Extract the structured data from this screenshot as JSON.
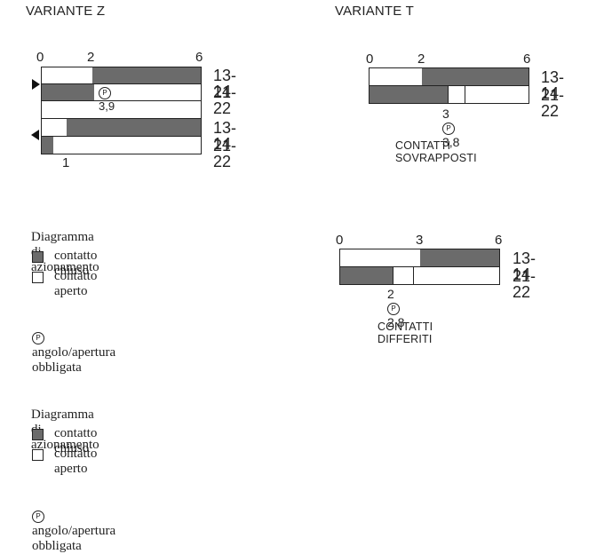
{
  "variant_z": {
    "title": "VARIANTE Z",
    "ticks": [
      "0",
      "2",
      "6"
    ],
    "codes_top": [
      "13-14",
      "21-22"
    ],
    "codes_bottom": [
      "13-14",
      "21-22"
    ],
    "p_value": "3,9",
    "bottom_tick": "1",
    "p_symbol": "P"
  },
  "variant_t": {
    "title": "VARIANTE T",
    "diagram_a": {
      "ticks": [
        "0",
        "2",
        "6"
      ],
      "codes": [
        "13-14",
        "21-22"
      ],
      "left_value": "3",
      "p_value": "3,8",
      "caption": "CONTATTI SOVRAPPOSTI"
    },
    "diagram_b": {
      "ticks": [
        "0",
        "3",
        "6"
      ],
      "codes": [
        "13-14",
        "21-22"
      ],
      "left_value": "2",
      "p_value": "2,8",
      "caption": "CONTATTI DIFFERITI"
    }
  },
  "legend_1": {
    "heading": "Diagramma di azionamento",
    "closed": "contatto chiuso",
    "open": "contatto aperto",
    "p_note": "angolo/apertura obbligata"
  },
  "legend_2": {
    "heading": "Diagramma di azionamento",
    "closed": "contatto chiuso",
    "open": "contatto aperto",
    "p_note": "angolo/apertura obbligata"
  },
  "colors": {
    "closed_contact": "#6b6b6b",
    "open_contact": "#ffffff",
    "outline": "#222222"
  }
}
